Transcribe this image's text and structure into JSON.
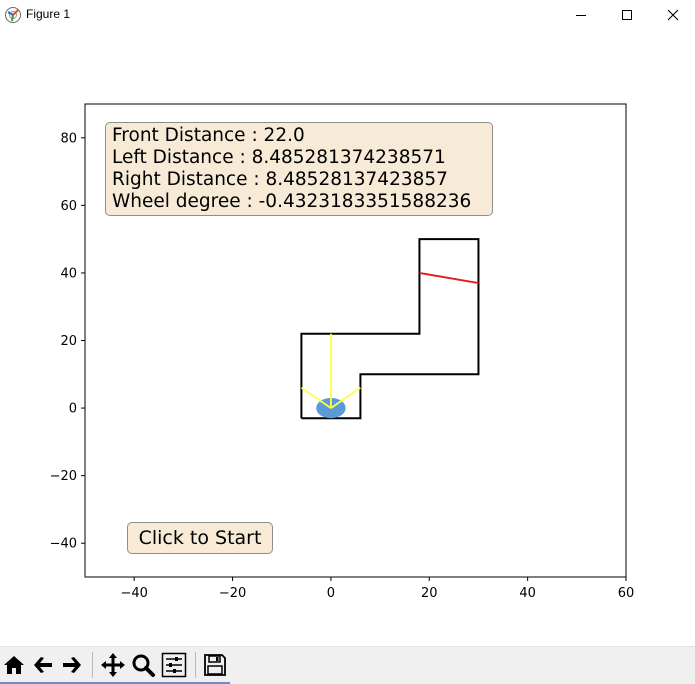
{
  "window": {
    "title": "Figure 1",
    "icons": {
      "app": "matplotlib-icon",
      "minimize": "minimize-icon",
      "maximize": "maximize-icon",
      "close": "close-icon"
    }
  },
  "info_box": {
    "front": "Front Distance : 22.0",
    "left": "Left Distance : 8.485281374238571",
    "right": "Right Distance : 8.48528137423857",
    "wheel": "Wheel degree : -0.4323183351588236"
  },
  "start_button": {
    "label": "Click to Start"
  },
  "chart_data": {
    "type": "line",
    "xlim": [
      -50,
      60
    ],
    "ylim": [
      -50,
      90
    ],
    "xticks": [
      -40,
      -20,
      0,
      20,
      40,
      60
    ],
    "yticks": [
      -40,
      -20,
      0,
      20,
      40,
      60,
      80
    ],
    "xtick_labels": [
      "−40",
      "−20",
      "0",
      "20",
      "40",
      "60"
    ],
    "ytick_labels": [
      "−40",
      "−20",
      "0",
      "20",
      "40",
      "60",
      "80"
    ],
    "grid": false,
    "track": {
      "color": "#000000",
      "points": [
        [
          -6,
          -3
        ],
        [
          -6,
          22
        ],
        [
          18,
          22
        ],
        [
          18,
          50
        ],
        [
          30,
          50
        ],
        [
          30,
          10
        ],
        [
          6,
          10
        ],
        [
          6,
          -3
        ],
        [
          -6,
          -3
        ]
      ]
    },
    "finish_line": {
      "color": "#e31a1c",
      "points": [
        [
          18,
          40
        ],
        [
          30,
          37
        ]
      ]
    },
    "car": {
      "center": [
        0,
        0
      ],
      "radius": 3,
      "color": "#5b9bd5"
    },
    "sensors": {
      "color": "#ffff4d",
      "front": [
        [
          0,
          0
        ],
        [
          0,
          22
        ]
      ],
      "left": [
        [
          0,
          0
        ],
        [
          -6,
          6
        ]
      ],
      "right": [
        [
          0,
          0
        ],
        [
          6,
          6
        ]
      ]
    }
  },
  "toolbar": {
    "icons": [
      "home-icon",
      "back-arrow-icon",
      "forward-arrow-icon",
      "pan-icon",
      "zoom-icon",
      "configure-subplots-icon",
      "save-icon"
    ]
  }
}
